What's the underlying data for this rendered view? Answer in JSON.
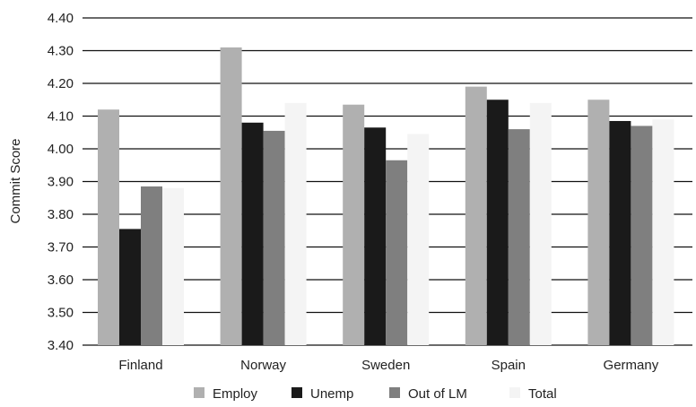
{
  "chart_data": {
    "type": "bar",
    "title": "",
    "xlabel": "",
    "ylabel": "Commit Score",
    "ylim": [
      3.4,
      4.4
    ],
    "yticks": [
      "3.40",
      "3.50",
      "3.60",
      "3.70",
      "3.80",
      "3.90",
      "4.00",
      "4.10",
      "4.20",
      "4.30",
      "4.40"
    ],
    "grid": true,
    "legend_position": "bottom",
    "categories": [
      "Finland",
      "Norway",
      "Sweden",
      "Spain",
      "Germany"
    ],
    "series": [
      {
        "name": "Employ",
        "color": "#b0b0b0",
        "values": [
          4.12,
          4.31,
          4.135,
          4.19,
          4.15
        ]
      },
      {
        "name": "Unemp",
        "color": "#1a1a1a",
        "values": [
          3.755,
          4.08,
          4.065,
          4.15,
          4.085
        ]
      },
      {
        "name": "Out of LM",
        "color": "#7f7f7f",
        "values": [
          3.885,
          4.055,
          3.965,
          4.06,
          4.07
        ]
      },
      {
        "name": "Total",
        "color": "#f4f4f4",
        "values": [
          3.88,
          4.14,
          4.045,
          4.14,
          4.09
        ]
      }
    ]
  }
}
